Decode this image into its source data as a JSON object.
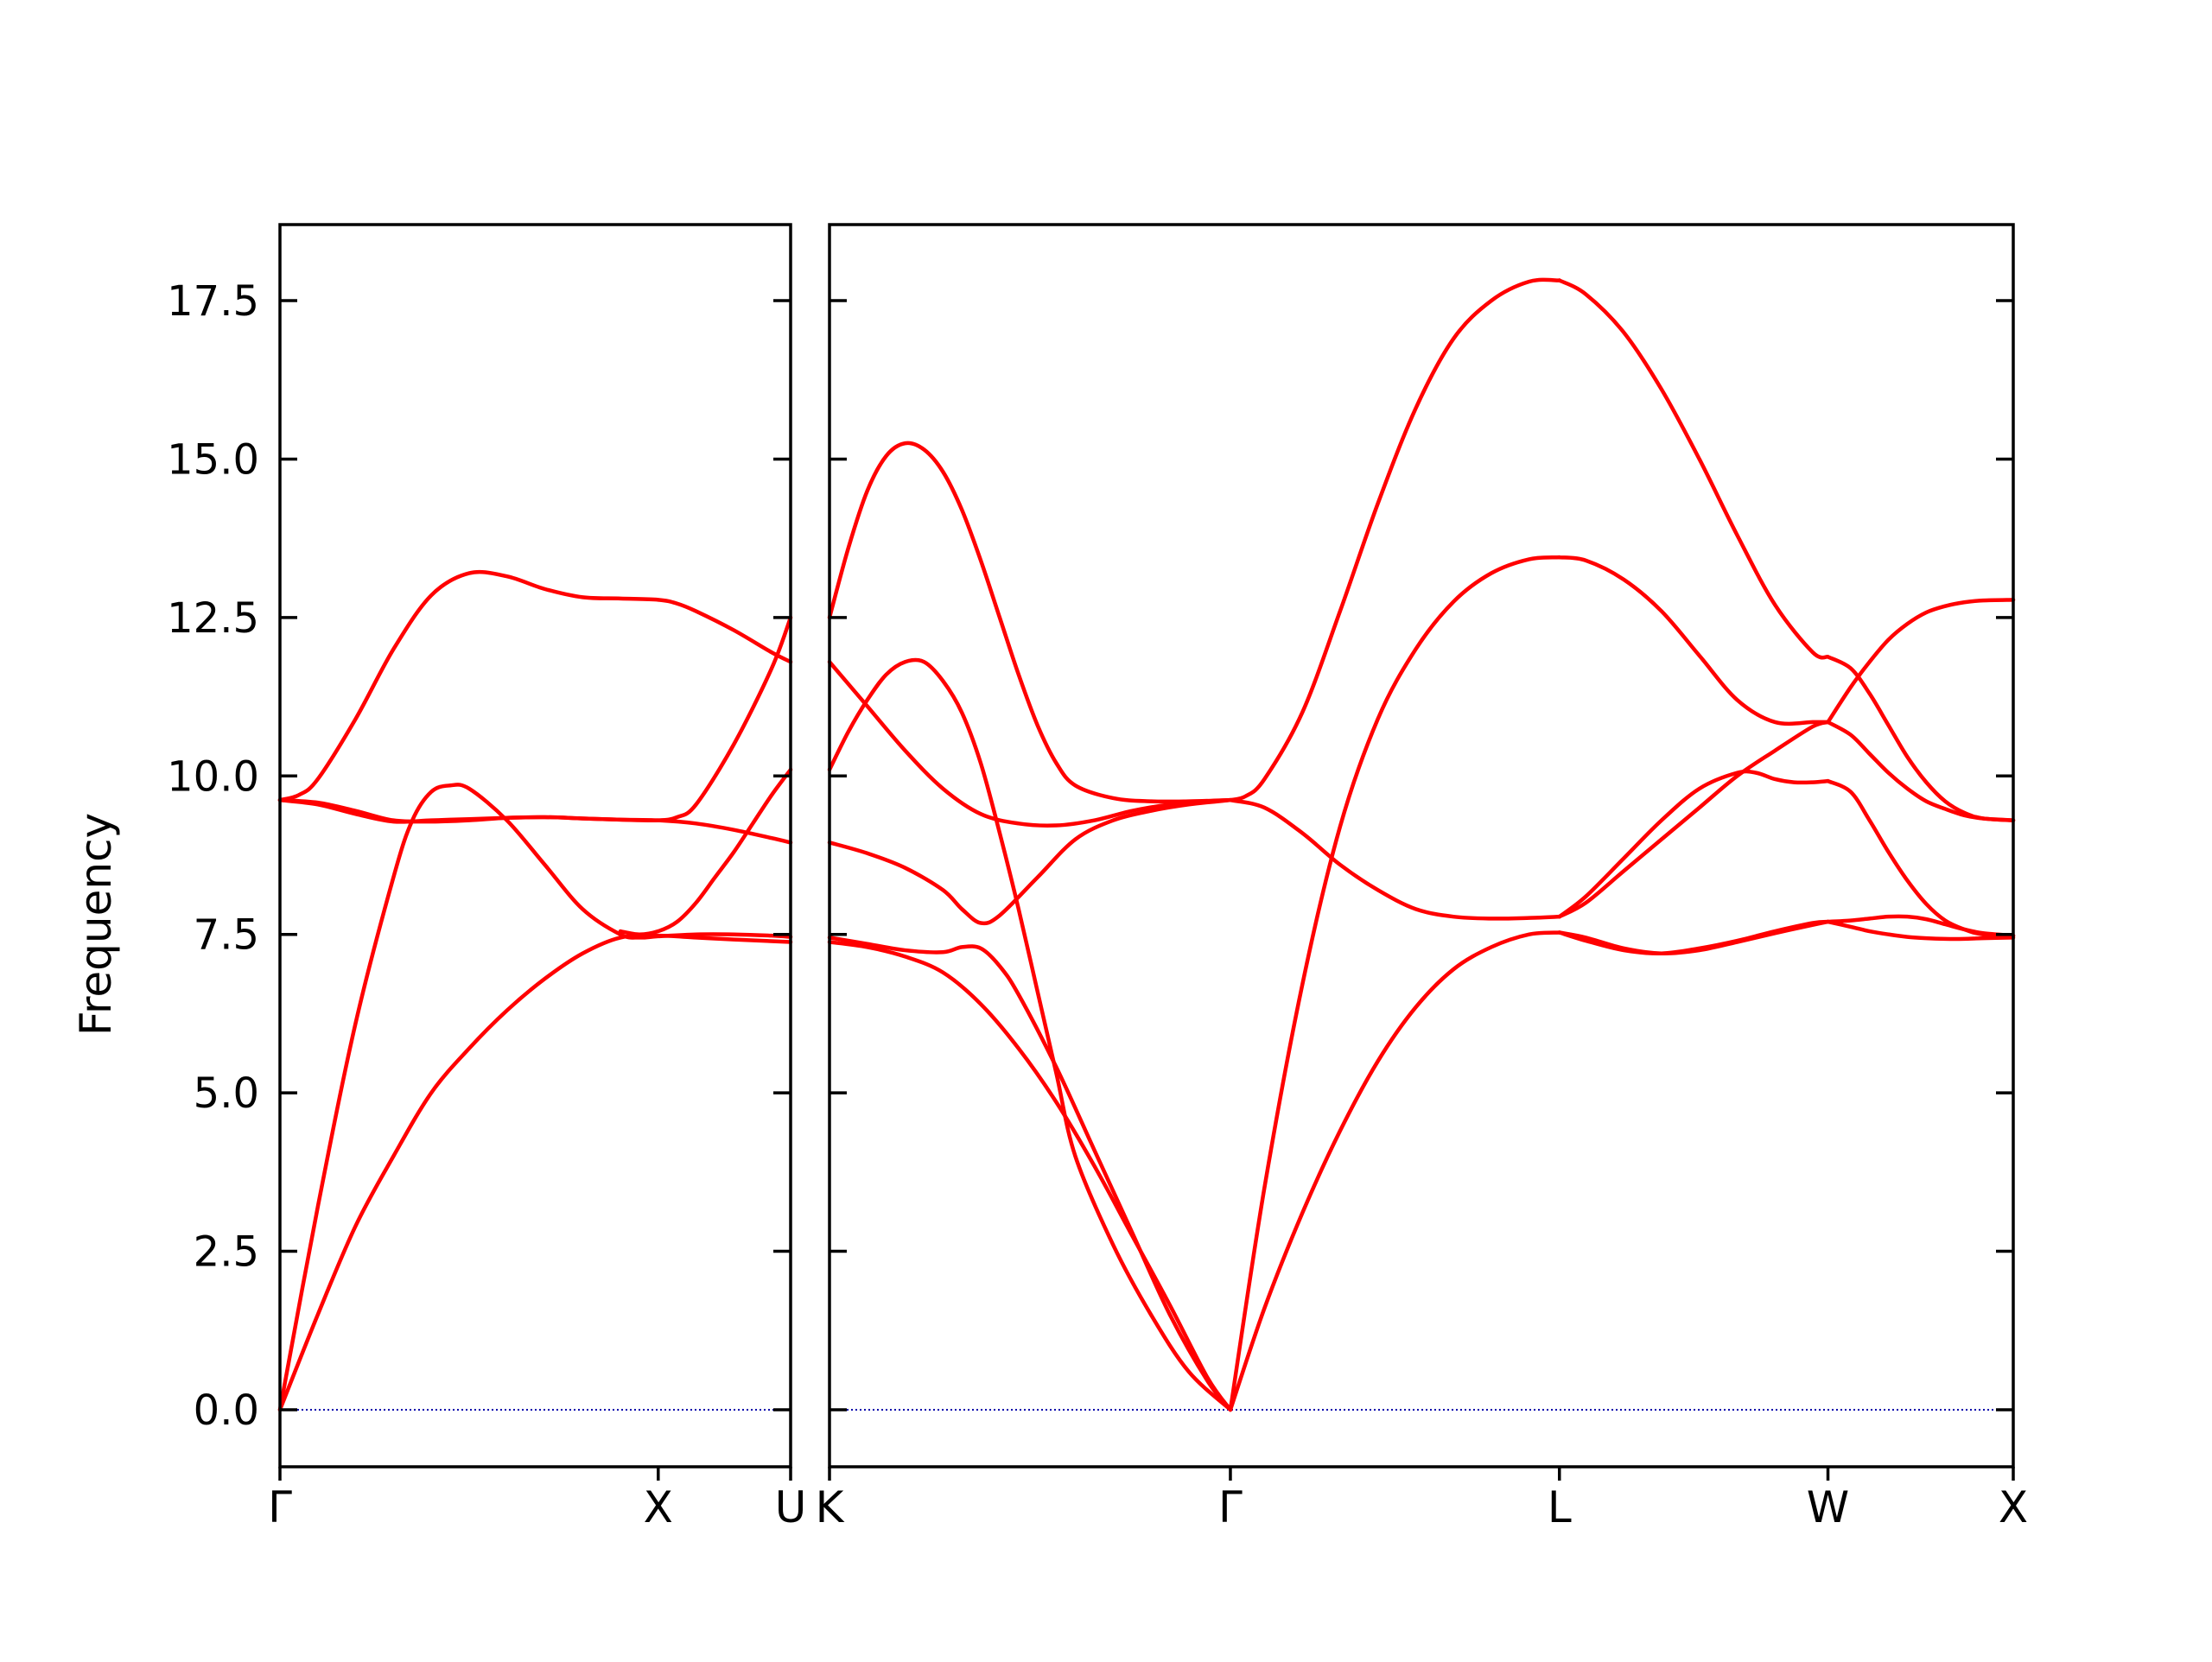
{
  "chart_data": {
    "type": "line",
    "title": "",
    "xlabel": "",
    "ylabel": "Frequency",
    "ylim": [
      -0.9,
      18.7
    ],
    "yticks": [
      0.0,
      2.5,
      5.0,
      7.5,
      10.0,
      12.5,
      15.0,
      17.5
    ],
    "ytick_labels": [
      "0.0",
      "2.5",
      "5.0",
      "7.5",
      "10.0",
      "12.5",
      "15.0",
      "17.5"
    ],
    "grid": false,
    "legend": "none",
    "colors": {
      "bands": "#ff0000",
      "zero_line": "#0000aa",
      "axes": "#000000"
    },
    "panels": [
      {
        "x_range": [
          0,
          1.35
        ],
        "ticks": [
          {
            "x": 0.0,
            "label": "Γ"
          },
          {
            "x": 1.0,
            "label": "X"
          },
          {
            "x": 1.35,
            "label": "U"
          }
        ],
        "zero_line": true,
        "series": [
          {
            "x": [
              0,
              0.1,
              0.2,
              0.3,
              0.4,
              0.5,
              0.6,
              0.7,
              0.8,
              0.9,
              1.0,
              1.1,
              1.2,
              1.35
            ],
            "y": [
              0,
              1.5,
              2.9,
              4.0,
              5.0,
              5.7,
              6.3,
              6.8,
              7.2,
              7.45,
              7.48,
              7.45,
              7.42,
              7.38
            ]
          },
          {
            "x": [
              0,
              0.1,
              0.2,
              0.3,
              0.35,
              0.4,
              0.45,
              0.5,
              0.6,
              0.7,
              0.8,
              0.9,
              0.95,
              1.0,
              1.1,
              1.2,
              1.3,
              1.35
            ],
            "y": [
              0,
              3.2,
              6.1,
              8.4,
              9.3,
              9.75,
              9.85,
              9.8,
              9.3,
              8.6,
              7.9,
              7.5,
              7.45,
              7.47,
              7.5,
              7.5,
              7.48,
              7.46
            ]
          },
          {
            "x": [
              0,
              0.1,
              0.2,
              0.3,
              0.4,
              0.5,
              0.6,
              0.7,
              0.8,
              0.9,
              1.0,
              1.05,
              1.1,
              1.2,
              1.3,
              1.35
            ],
            "y": [
              9.62,
              9.55,
              9.4,
              9.28,
              9.3,
              9.32,
              9.34,
              9.35,
              9.33,
              9.31,
              9.3,
              9.35,
              9.55,
              10.5,
              11.7,
              12.5
            ]
          },
          {
            "x": [
              0,
              0.05,
              0.1,
              0.2,
              0.3,
              0.4,
              0.5,
              0.6,
              0.7,
              0.8,
              0.9,
              1.0,
              1.05,
              1.1,
              1.2,
              1.3,
              1.35
            ],
            "y": [
              9.62,
              9.7,
              9.95,
              10.9,
              12.0,
              12.85,
              13.2,
              13.15,
              12.95,
              12.82,
              12.8,
              12.78,
              12.72,
              12.6,
              12.3,
              11.95,
              11.8
            ]
          },
          {
            "x": [
              0,
              0.1,
              0.2,
              0.3,
              0.4,
              0.5,
              0.6,
              0.7,
              0.8,
              0.9,
              1.0,
              1.1,
              1.2,
              1.3,
              1.35
            ],
            "y": [
              9.62,
              9.58,
              9.45,
              9.3,
              9.28,
              9.3,
              9.34,
              9.35,
              9.33,
              9.31,
              9.3,
              9.25,
              9.15,
              9.02,
              8.95
            ]
          },
          {
            "x": [
              0.9,
              0.95,
              1.0,
              1.05,
              1.1,
              1.15,
              1.2,
              1.25,
              1.3,
              1.35
            ],
            "y": [
              7.55,
              7.5,
              7.55,
              7.7,
              8.0,
              8.4,
              8.8,
              9.25,
              9.7,
              10.1
            ]
          }
        ]
      },
      {
        "x_range": [
          1.35,
          4.48
        ],
        "ticks": [
          {
            "x": 1.35,
            "label": "K"
          },
          {
            "x": 2.41,
            "label": "Γ"
          },
          {
            "x": 3.28,
            "label": "L"
          },
          {
            "x": 3.99,
            "label": "W"
          },
          {
            "x": 4.48,
            "label": "X"
          }
        ],
        "zero_line": true,
        "series": [
          {
            "x": [
              1.35,
              1.45,
              1.55,
              1.65,
              1.75,
              1.85,
              1.95,
              2.05,
              2.15,
              2.25,
              2.35,
              2.41
            ],
            "y": [
              7.38,
              7.3,
              7.15,
              6.9,
              6.4,
              5.7,
              4.85,
              3.85,
              2.75,
              1.65,
              0.5,
              0
            ]
          },
          {
            "x": [
              1.35,
              1.45,
              1.55,
              1.65,
              1.7,
              1.75,
              1.8,
              1.85,
              1.95,
              2.05,
              2.15,
              2.25,
              2.35,
              2.41
            ],
            "y": [
              7.45,
              7.35,
              7.25,
              7.22,
              7.3,
              7.28,
              7.0,
              6.55,
              5.4,
              4.1,
              2.8,
              1.5,
              0.45,
              0
            ]
          },
          {
            "x": [
              1.35,
              1.45,
              1.55,
              1.65,
              1.7,
              1.75,
              1.8,
              1.9,
              2.0,
              2.1,
              2.2,
              2.3,
              2.41
            ],
            "y": [
              8.95,
              8.78,
              8.55,
              8.2,
              7.9,
              7.68,
              7.8,
              8.4,
              9.0,
              9.3,
              9.45,
              9.55,
              9.62
            ]
          },
          {
            "x": [
              1.35,
              1.45,
              1.55,
              1.65,
              1.75,
              1.85,
              1.95,
              2.05,
              2.15,
              2.25,
              2.35,
              2.41
            ],
            "y": [
              11.8,
              11.1,
              10.4,
              9.8,
              9.4,
              9.25,
              9.22,
              9.3,
              9.45,
              9.55,
              9.6,
              9.62
            ]
          },
          {
            "x": [
              1.35,
              1.4,
              1.45,
              1.5,
              1.55,
              1.6,
              1.65,
              1.7,
              1.75,
              1.8,
              1.85,
              1.9,
              1.95,
              2.0,
              2.1,
              2.2,
              2.3,
              2.41
            ],
            "y": [
              10.1,
              10.7,
              11.2,
              11.6,
              11.8,
              11.8,
              11.5,
              11.0,
              10.2,
              9.1,
              7.9,
              6.6,
              5.3,
              4.0,
              2.6,
              1.5,
              0.6,
              0
            ]
          },
          {
            "x": [
              1.35,
              1.4,
              1.45,
              1.5,
              1.55,
              1.6,
              1.65,
              1.7,
              1.75,
              1.8,
              1.85,
              1.9,
              1.95,
              2.0,
              2.1,
              2.2,
              2.3,
              2.41
            ],
            "y": [
              12.5,
              13.6,
              14.5,
              15.05,
              15.25,
              15.15,
              14.8,
              14.2,
              13.4,
              12.5,
              11.6,
              10.8,
              10.2,
              9.85,
              9.65,
              9.6,
              9.6,
              9.62
            ]
          },
          {
            "x": [
              2.41,
              2.5,
              2.6,
              2.7,
              2.8,
              2.9,
              3.0,
              3.1,
              3.2,
              3.28
            ],
            "y": [
              0,
              1.6,
              3.1,
              4.4,
              5.5,
              6.35,
              6.95,
              7.3,
              7.5,
              7.53
            ]
          },
          {
            "x": [
              2.41,
              2.5,
              2.6,
              2.7,
              2.8,
              2.9,
              3.0,
              3.1,
              3.2,
              3.28
            ],
            "y": [
              0,
              3.5,
              6.7,
              9.2,
              10.9,
              12.0,
              12.75,
              13.2,
              13.42,
              13.45
            ]
          },
          {
            "x": [
              2.41,
              2.5,
              2.6,
              2.7,
              2.8,
              2.9,
              3.0,
              3.1,
              3.2,
              3.28
            ],
            "y": [
              9.62,
              9.5,
              9.1,
              8.6,
              8.2,
              7.9,
              7.78,
              7.75,
              7.76,
              7.78
            ]
          },
          {
            "x": [
              2.41,
              2.45,
              2.5,
              2.6,
              2.7,
              2.8,
              2.9,
              3.0,
              3.1,
              3.2,
              3.28
            ],
            "y": [
              9.62,
              9.68,
              9.95,
              11.0,
              12.6,
              14.3,
              15.8,
              16.9,
              17.5,
              17.8,
              17.82
            ]
          },
          {
            "x": [
              3.28,
              3.35,
              3.45,
              3.55,
              3.65,
              3.75,
              3.85,
              3.95,
              3.99
            ],
            "y": [
              7.53,
              7.4,
              7.25,
              7.2,
              7.28,
              7.4,
              7.55,
              7.68,
              7.7
            ]
          },
          {
            "x": [
              3.28,
              3.35,
              3.45,
              3.55,
              3.65,
              3.75,
              3.85,
              3.95,
              3.99
            ],
            "y": [
              7.53,
              7.45,
              7.28,
              7.2,
              7.25,
              7.38,
              7.52,
              7.65,
              7.7
            ]
          },
          {
            "x": [
              3.28,
              3.35,
              3.45,
              3.55,
              3.65,
              3.75,
              3.8,
              3.85,
              3.9,
              3.95,
              3.99
            ],
            "y": [
              7.78,
              8.1,
              8.7,
              9.3,
              9.8,
              10.05,
              10.05,
              9.95,
              9.9,
              9.9,
              9.92
            ]
          },
          {
            "x": [
              3.28,
              3.35,
              3.45,
              3.55,
              3.65,
              3.75,
              3.85,
              3.95,
              3.99
            ],
            "y": [
              7.78,
              8.0,
              8.5,
              9.0,
              9.5,
              10.0,
              10.4,
              10.78,
              10.85
            ]
          },
          {
            "x": [
              3.28,
              3.35,
              3.45,
              3.55,
              3.65,
              3.75,
              3.85,
              3.95,
              3.99
            ],
            "y": [
              13.45,
              13.4,
              13.1,
              12.6,
              11.9,
              11.2,
              10.85,
              10.85,
              10.85
            ]
          },
          {
            "x": [
              3.28,
              3.35,
              3.45,
              3.55,
              3.65,
              3.75,
              3.85,
              3.95,
              3.99
            ],
            "y": [
              17.82,
              17.6,
              17.0,
              16.1,
              15.0,
              13.8,
              12.7,
              11.95,
              11.88
            ]
          },
          {
            "x": [
              3.99,
              4.05,
              4.1,
              4.15,
              4.2,
              4.25,
              4.3,
              4.35,
              4.4,
              4.48
            ],
            "y": [
              7.7,
              7.72,
              7.75,
              7.78,
              7.78,
              7.74,
              7.66,
              7.58,
              7.52,
              7.48
            ]
          },
          {
            "x": [
              3.99,
              4.05,
              4.1,
              4.15,
              4.2,
              4.25,
              4.3,
              4.35,
              4.4,
              4.48
            ],
            "y": [
              7.7,
              7.62,
              7.55,
              7.5,
              7.46,
              7.44,
              7.43,
              7.43,
              7.44,
              7.45
            ]
          },
          {
            "x": [
              3.99,
              4.05,
              4.1,
              4.15,
              4.2,
              4.25,
              4.3,
              4.35,
              4.4,
              4.48
            ],
            "y": [
              9.92,
              9.75,
              9.3,
              8.8,
              8.35,
              7.98,
              7.72,
              7.58,
              7.5,
              7.48
            ]
          },
          {
            "x": [
              3.99,
              4.05,
              4.1,
              4.15,
              4.2,
              4.25,
              4.3,
              4.35,
              4.4,
              4.48
            ],
            "y": [
              10.85,
              10.65,
              10.35,
              10.05,
              9.8,
              9.6,
              9.48,
              9.38,
              9.33,
              9.3
            ]
          },
          {
            "x": [
              3.99,
              4.05,
              4.1,
              4.15,
              4.2,
              4.25,
              4.3,
              4.35,
              4.4,
              4.48
            ],
            "y": [
              11.88,
              11.7,
              11.3,
              10.8,
              10.3,
              9.9,
              9.6,
              9.42,
              9.33,
              9.3
            ]
          },
          {
            "x": [
              3.99,
              4.05,
              4.1,
              4.15,
              4.2,
              4.25,
              4.3,
              4.35,
              4.4,
              4.48
            ],
            "y": [
              10.85,
              11.4,
              11.8,
              12.15,
              12.4,
              12.58,
              12.68,
              12.74,
              12.77,
              12.78
            ]
          }
        ]
      }
    ]
  }
}
